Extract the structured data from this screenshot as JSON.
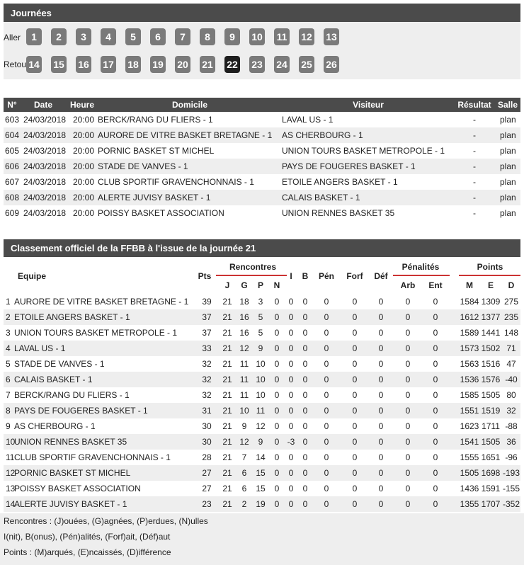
{
  "journees": {
    "title": "Journées",
    "aller_label": "Aller",
    "aller": [
      "1",
      "2",
      "3",
      "4",
      "5",
      "6",
      "7",
      "8",
      "9",
      "10",
      "11",
      "12",
      "13"
    ],
    "retour_label": "Retour",
    "retour": [
      "14",
      "15",
      "16",
      "17",
      "18",
      "19",
      "20",
      "21",
      "22",
      "23",
      "24",
      "25",
      "26"
    ],
    "selected": "22"
  },
  "matches": {
    "headers": [
      "N°",
      "Date",
      "Heure",
      "Domicile",
      "Visiteur",
      "Résultat",
      "Salle"
    ],
    "rows": [
      [
        "603",
        "24/03/2018",
        "20:00",
        "BERCK/RANG DU FLIERS - 1",
        "LAVAL US - 1",
        "-",
        "plan"
      ],
      [
        "604",
        "24/03/2018",
        "20:00",
        "AURORE DE VITRE BASKET BRETAGNE - 1",
        "AS CHERBOURG - 1",
        "-",
        "plan"
      ],
      [
        "605",
        "24/03/2018",
        "20:00",
        "PORNIC BASKET ST MICHEL",
        "UNION TOURS BASKET METROPOLE - 1",
        "-",
        "plan"
      ],
      [
        "606",
        "24/03/2018",
        "20:00",
        "STADE DE VANVES - 1",
        "PAYS DE FOUGERES BASKET - 1",
        "-",
        "plan"
      ],
      [
        "607",
        "24/03/2018",
        "20:00",
        "CLUB SPORTIF GRAVENCHONNAIS - 1",
        "ETOILE ANGERS BASKET - 1",
        "-",
        "plan"
      ],
      [
        "608",
        "24/03/2018",
        "20:00",
        "ALERTE JUVISY BASKET - 1",
        "CALAIS BASKET - 1",
        "-",
        "plan"
      ],
      [
        "609",
        "24/03/2018",
        "20:00",
        "POISSY BASKET ASSOCIATION",
        "UNION RENNES BASKET 35",
        "-",
        "plan"
      ]
    ]
  },
  "classement": {
    "title": "Classement officiel de la FFBB à l'issue de la journée 21",
    "headers": {
      "equipe": "Equipe",
      "pts": "Pts",
      "rencontres": "Rencontres",
      "rencontres_cols": [
        "J",
        "G",
        "P",
        "N"
      ],
      "single": [
        "I",
        "B",
        "Pén",
        "Forf",
        "Déf"
      ],
      "penalites": "Pénalités",
      "penalites_cols": [
        "Arb",
        "Ent"
      ],
      "points": "Points",
      "points_cols": [
        "M",
        "E",
        "D"
      ]
    },
    "rows": [
      [
        1,
        "AURORE DE VITRE BASKET BRETAGNE - 1",
        39,
        21,
        18,
        3,
        0,
        0,
        0,
        0,
        0,
        0,
        0,
        0,
        1584,
        1309,
        275
      ],
      [
        2,
        "ETOILE ANGERS BASKET - 1",
        37,
        21,
        16,
        5,
        0,
        0,
        0,
        0,
        0,
        0,
        0,
        0,
        1612,
        1377,
        235
      ],
      [
        3,
        "UNION TOURS BASKET METROPOLE - 1",
        37,
        21,
        16,
        5,
        0,
        0,
        0,
        0,
        0,
        0,
        0,
        0,
        1589,
        1441,
        148
      ],
      [
        4,
        "LAVAL US - 1",
        33,
        21,
        12,
        9,
        0,
        0,
        0,
        0,
        0,
        0,
        0,
        0,
        1573,
        1502,
        71
      ],
      [
        5,
        "STADE DE VANVES - 1",
        32,
        21,
        11,
        10,
        0,
        0,
        0,
        0,
        0,
        0,
        0,
        0,
        1563,
        1516,
        47
      ],
      [
        6,
        "CALAIS BASKET - 1",
        32,
        21,
        11,
        10,
        0,
        0,
        0,
        0,
        0,
        0,
        0,
        0,
        1536,
        1576,
        -40
      ],
      [
        7,
        "BERCK/RANG DU FLIERS - 1",
        32,
        21,
        11,
        10,
        0,
        0,
        0,
        0,
        0,
        0,
        0,
        0,
        1585,
        1505,
        80
      ],
      [
        8,
        "PAYS DE FOUGERES BASKET - 1",
        31,
        21,
        10,
        11,
        0,
        0,
        0,
        0,
        0,
        0,
        0,
        0,
        1551,
        1519,
        32
      ],
      [
        9,
        "AS CHERBOURG - 1",
        30,
        21,
        9,
        12,
        0,
        0,
        0,
        0,
        0,
        0,
        0,
        0,
        1623,
        1711,
        -88
      ],
      [
        10,
        "UNION RENNES BASKET 35",
        30,
        21,
        12,
        9,
        0,
        -3,
        0,
        0,
        0,
        0,
        0,
        0,
        1541,
        1505,
        36
      ],
      [
        11,
        "CLUB SPORTIF GRAVENCHONNAIS - 1",
        28,
        21,
        7,
        14,
        0,
        0,
        0,
        0,
        0,
        0,
        0,
        0,
        1555,
        1651,
        -96
      ],
      [
        12,
        "PORNIC BASKET ST MICHEL",
        27,
        21,
        6,
        15,
        0,
        0,
        0,
        0,
        0,
        0,
        0,
        0,
        1505,
        1698,
        -193
      ],
      [
        13,
        "POISSY BASKET ASSOCIATION",
        27,
        21,
        6,
        15,
        0,
        0,
        0,
        0,
        0,
        0,
        0,
        0,
        1436,
        1591,
        -155
      ],
      [
        14,
        "ALERTE JUVISY BASKET - 1",
        23,
        21,
        2,
        19,
        0,
        0,
        0,
        0,
        0,
        0,
        0,
        0,
        1355,
        1707,
        -352
      ]
    ],
    "legend": [
      "Rencontres : (J)ouées, (G)agnées, (P)erdues, (N)ulles",
      "I(nit), B(onus), (Pén)alités, (Forf)ait, (Déf)aut",
      "Points : (M)arqués, (E)ncaissés, (D)ifférence"
    ]
  }
}
